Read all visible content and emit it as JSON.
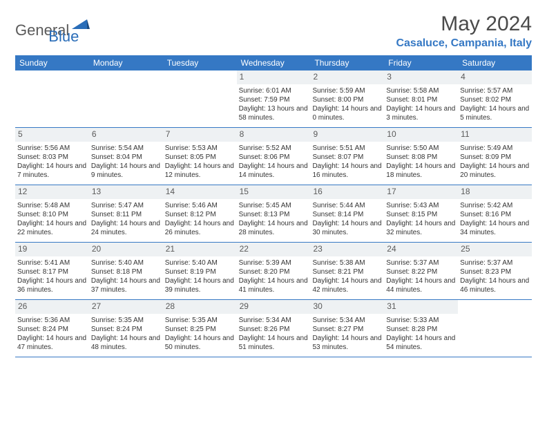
{
  "brand": {
    "part1": "General",
    "part2": "Blue"
  },
  "title": "May 2024",
  "location": "Casaluce, Campania, Italy",
  "colors": {
    "header_bg": "#3578c4",
    "header_text": "#ffffff",
    "daynum_bg": "#eef1f3",
    "text": "#333333",
    "brand_gray": "#5a5a5a",
    "brand_blue": "#2a6db8"
  },
  "dayHeaders": [
    "Sunday",
    "Monday",
    "Tuesday",
    "Wednesday",
    "Thursday",
    "Friday",
    "Saturday"
  ],
  "weeks": [
    [
      {
        "empty": true
      },
      {
        "empty": true
      },
      {
        "empty": true
      },
      {
        "num": "1",
        "sunrise": "6:01 AM",
        "sunset": "7:59 PM",
        "daylight": "13 hours and 58 minutes."
      },
      {
        "num": "2",
        "sunrise": "5:59 AM",
        "sunset": "8:00 PM",
        "daylight": "14 hours and 0 minutes."
      },
      {
        "num": "3",
        "sunrise": "5:58 AM",
        "sunset": "8:01 PM",
        "daylight": "14 hours and 3 minutes."
      },
      {
        "num": "4",
        "sunrise": "5:57 AM",
        "sunset": "8:02 PM",
        "daylight": "14 hours and 5 minutes."
      }
    ],
    [
      {
        "num": "5",
        "sunrise": "5:56 AM",
        "sunset": "8:03 PM",
        "daylight": "14 hours and 7 minutes."
      },
      {
        "num": "6",
        "sunrise": "5:54 AM",
        "sunset": "8:04 PM",
        "daylight": "14 hours and 9 minutes."
      },
      {
        "num": "7",
        "sunrise": "5:53 AM",
        "sunset": "8:05 PM",
        "daylight": "14 hours and 12 minutes."
      },
      {
        "num": "8",
        "sunrise": "5:52 AM",
        "sunset": "8:06 PM",
        "daylight": "14 hours and 14 minutes."
      },
      {
        "num": "9",
        "sunrise": "5:51 AM",
        "sunset": "8:07 PM",
        "daylight": "14 hours and 16 minutes."
      },
      {
        "num": "10",
        "sunrise": "5:50 AM",
        "sunset": "8:08 PM",
        "daylight": "14 hours and 18 minutes."
      },
      {
        "num": "11",
        "sunrise": "5:49 AM",
        "sunset": "8:09 PM",
        "daylight": "14 hours and 20 minutes."
      }
    ],
    [
      {
        "num": "12",
        "sunrise": "5:48 AM",
        "sunset": "8:10 PM",
        "daylight": "14 hours and 22 minutes."
      },
      {
        "num": "13",
        "sunrise": "5:47 AM",
        "sunset": "8:11 PM",
        "daylight": "14 hours and 24 minutes."
      },
      {
        "num": "14",
        "sunrise": "5:46 AM",
        "sunset": "8:12 PM",
        "daylight": "14 hours and 26 minutes."
      },
      {
        "num": "15",
        "sunrise": "5:45 AM",
        "sunset": "8:13 PM",
        "daylight": "14 hours and 28 minutes."
      },
      {
        "num": "16",
        "sunrise": "5:44 AM",
        "sunset": "8:14 PM",
        "daylight": "14 hours and 30 minutes."
      },
      {
        "num": "17",
        "sunrise": "5:43 AM",
        "sunset": "8:15 PM",
        "daylight": "14 hours and 32 minutes."
      },
      {
        "num": "18",
        "sunrise": "5:42 AM",
        "sunset": "8:16 PM",
        "daylight": "14 hours and 34 minutes."
      }
    ],
    [
      {
        "num": "19",
        "sunrise": "5:41 AM",
        "sunset": "8:17 PM",
        "daylight": "14 hours and 36 minutes."
      },
      {
        "num": "20",
        "sunrise": "5:40 AM",
        "sunset": "8:18 PM",
        "daylight": "14 hours and 37 minutes."
      },
      {
        "num": "21",
        "sunrise": "5:40 AM",
        "sunset": "8:19 PM",
        "daylight": "14 hours and 39 minutes."
      },
      {
        "num": "22",
        "sunrise": "5:39 AM",
        "sunset": "8:20 PM",
        "daylight": "14 hours and 41 minutes."
      },
      {
        "num": "23",
        "sunrise": "5:38 AM",
        "sunset": "8:21 PM",
        "daylight": "14 hours and 42 minutes."
      },
      {
        "num": "24",
        "sunrise": "5:37 AM",
        "sunset": "8:22 PM",
        "daylight": "14 hours and 44 minutes."
      },
      {
        "num": "25",
        "sunrise": "5:37 AM",
        "sunset": "8:23 PM",
        "daylight": "14 hours and 46 minutes."
      }
    ],
    [
      {
        "num": "26",
        "sunrise": "5:36 AM",
        "sunset": "8:24 PM",
        "daylight": "14 hours and 47 minutes."
      },
      {
        "num": "27",
        "sunrise": "5:35 AM",
        "sunset": "8:24 PM",
        "daylight": "14 hours and 48 minutes."
      },
      {
        "num": "28",
        "sunrise": "5:35 AM",
        "sunset": "8:25 PM",
        "daylight": "14 hours and 50 minutes."
      },
      {
        "num": "29",
        "sunrise": "5:34 AM",
        "sunset": "8:26 PM",
        "daylight": "14 hours and 51 minutes."
      },
      {
        "num": "30",
        "sunrise": "5:34 AM",
        "sunset": "8:27 PM",
        "daylight": "14 hours and 53 minutes."
      },
      {
        "num": "31",
        "sunrise": "5:33 AM",
        "sunset": "8:28 PM",
        "daylight": "14 hours and 54 minutes."
      },
      {
        "empty": true
      }
    ]
  ],
  "labels": {
    "sunrise": "Sunrise: ",
    "sunset": "Sunset: ",
    "daylight": "Daylight: "
  }
}
